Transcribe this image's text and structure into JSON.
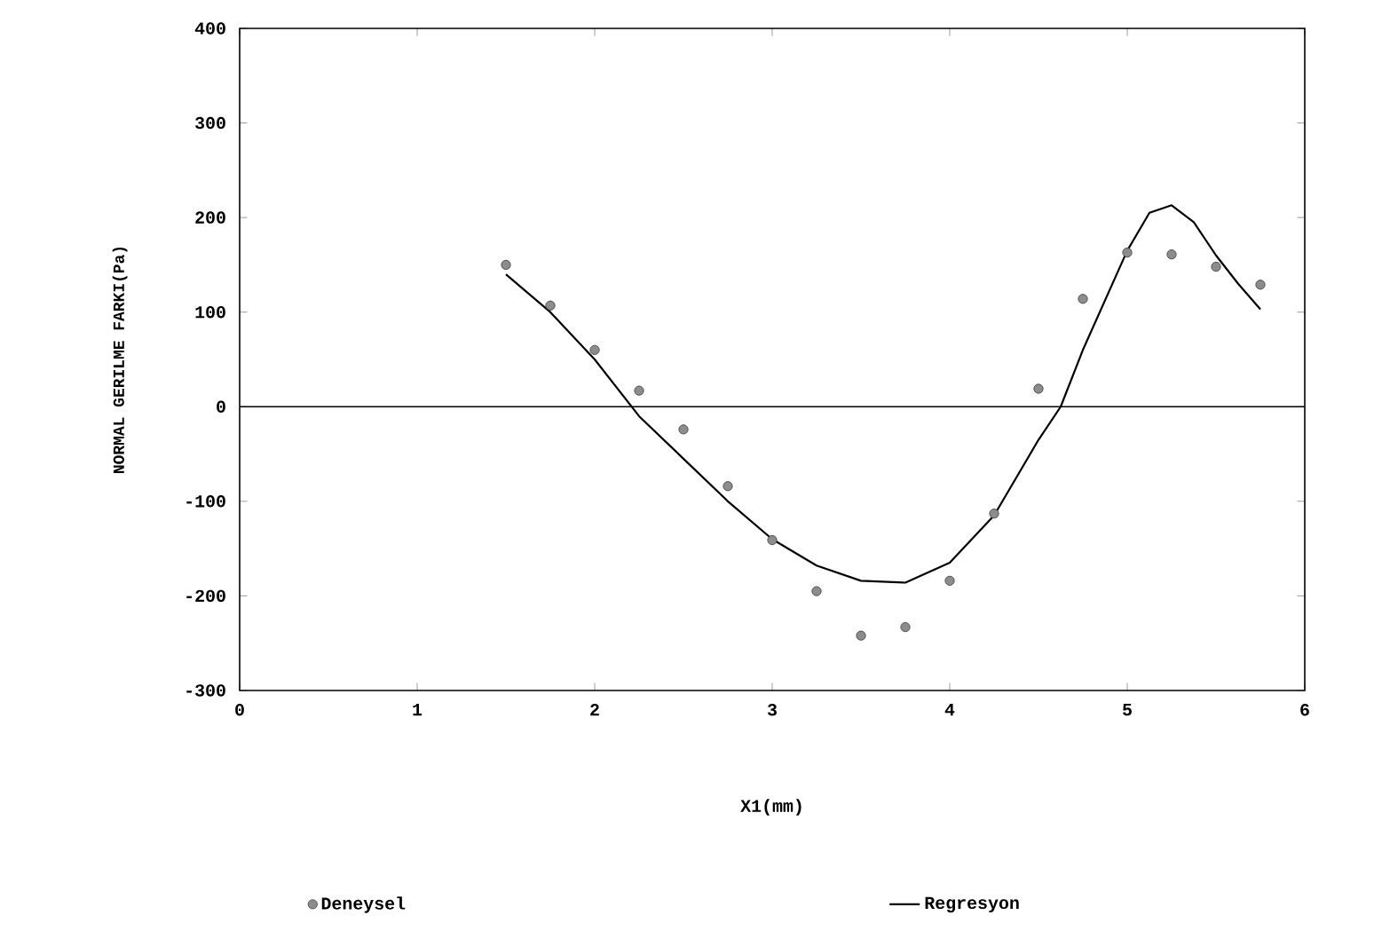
{
  "chart_data": {
    "type": "scatter",
    "xlabel": "X1(mm)",
    "ylabel": "NORMAL GERILME FARKI(Pa)",
    "xlim": [
      0,
      6
    ],
    "ylim": [
      -300,
      400
    ],
    "xticks": [
      0,
      1,
      2,
      3,
      4,
      5,
      6
    ],
    "yticks": [
      -300,
      -200,
      -100,
      0,
      100,
      200,
      300,
      400
    ],
    "legend": "bottom",
    "ref_lines": [
      {
        "axis": "y",
        "value": 0,
        "color": "#000000"
      }
    ],
    "series": [
      {
        "name": "Deneysel",
        "marker": "circle",
        "color": "#8c8c8c",
        "x": [
          1.5,
          1.75,
          2.0,
          2.25,
          2.5,
          2.75,
          3.0,
          3.25,
          3.5,
          3.75,
          4.0,
          4.25,
          4.5,
          4.75,
          5.0,
          5.25,
          5.5,
          5.75
        ],
        "values": [
          150,
          107,
          60,
          17,
          -24,
          -84,
          -141,
          -195,
          -242,
          -233,
          -184,
          -113,
          19,
          114,
          163,
          161,
          148,
          129
        ]
      },
      {
        "name": "Regresyon",
        "type": "line",
        "marker": "none",
        "line_style": "solid",
        "color": "#000000",
        "x": [
          1.5,
          1.75,
          2.0,
          2.25,
          2.5,
          2.75,
          3.0,
          3.25,
          3.5,
          3.75,
          4.0,
          4.25,
          4.5,
          4.625,
          4.75,
          5.0,
          5.125,
          5.25,
          5.375,
          5.5,
          5.625,
          5.75
        ],
        "values": [
          140,
          100,
          50,
          -10,
          -55,
          -100,
          -140,
          -168,
          -184,
          -186,
          -165,
          -115,
          -35,
          0,
          60,
          165,
          205,
          213,
          195,
          160,
          130,
          103
        ]
      }
    ]
  }
}
